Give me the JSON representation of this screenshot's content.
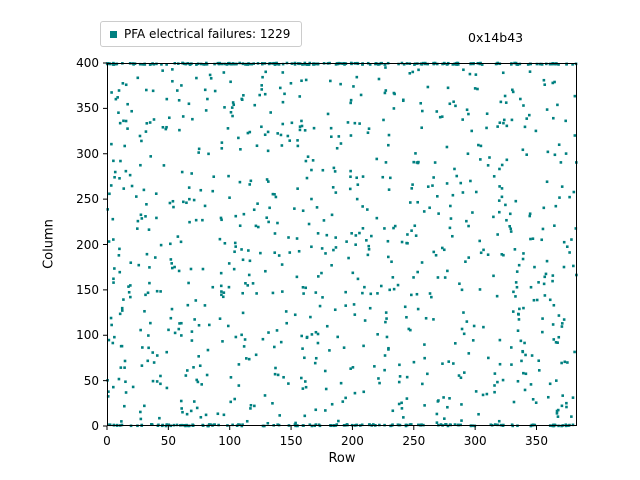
{
  "figure": {
    "background": "#ffffff"
  },
  "legend": {
    "label": "PFA electrical failures: 1229",
    "marker_color": "#008080"
  },
  "annotation": "0x14b43",
  "chart_data": {
    "type": "scatter",
    "title": "",
    "xlabel": "Row",
    "ylabel": "Column",
    "xlim": [
      0,
      383
    ],
    "ylim": [
      0,
      400
    ],
    "xticks": [
      0,
      50,
      100,
      150,
      200,
      250,
      300,
      350
    ],
    "yticks": [
      0,
      50,
      100,
      150,
      200,
      250,
      300,
      350,
      400
    ],
    "grid": false,
    "legend_position": "upper left, outside axes",
    "series": [
      {
        "name": "PFA electrical failures",
        "count": 1229,
        "marker": "square",
        "marker_size_px": 2.6,
        "color": "#008080",
        "distribution": {
          "note": "uniform random scatter over the full row/column range with dense bands of failures along column 400 (top) and column 0 (bottom)",
          "seed": 1443143,
          "top_band": {
            "y_min": 398.2,
            "y_max": 400,
            "count": 230
          },
          "bottom_band": {
            "y_min": 0,
            "y_max": 1.8,
            "count": 160
          },
          "uniform": {
            "y_min": 3,
            "y_max": 397,
            "x_min": 0,
            "x_max": 383,
            "count": 839
          }
        }
      }
    ]
  }
}
